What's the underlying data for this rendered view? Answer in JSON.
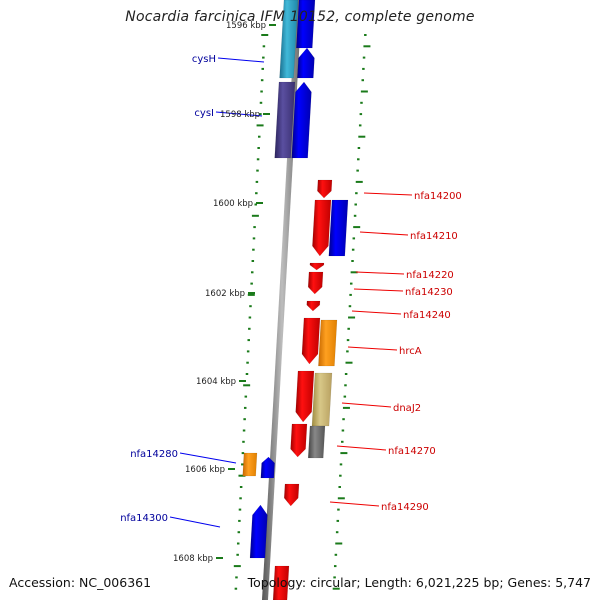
{
  "header": {
    "title": "Nocardia farcinica IFM 10152, complete genome"
  },
  "footer": {
    "accession": "Accession: NC_006361",
    "stats": "Topology: circular; Length: 6,021,225 bp; Genes: 5,747"
  },
  "colors": {
    "background": "#ffffff",
    "forward_gene": "#0000ee",
    "reverse_gene": "#ee0000",
    "backbone": "#888888",
    "kbp_ticks": "#1a7a1a",
    "cyan_gene": "#33aacc",
    "indigo_gene": "#4a3f8a",
    "orange_gene": "#ff9900",
    "khaki_gene": "#c8b870",
    "grey_gene": "#707070",
    "label_forward": "#00009c",
    "label_reverse": "#cc0000"
  },
  "scale_labels": [
    "1596 kbp",
    "1598 kbp",
    "1600 kbp",
    "1602 kbp",
    "1604 kbp",
    "1606 kbp",
    "1608 kbp"
  ],
  "gene_labels": {
    "forward": [
      "cysH",
      "cysI",
      "nfa14280",
      "nfa14300"
    ],
    "reverse": [
      "nfa14200",
      "nfa14210",
      "nfa14220",
      "nfa14230",
      "nfa14240",
      "hrcA",
      "dnaJ2",
      "nfa14270",
      "nfa14290"
    ]
  }
}
